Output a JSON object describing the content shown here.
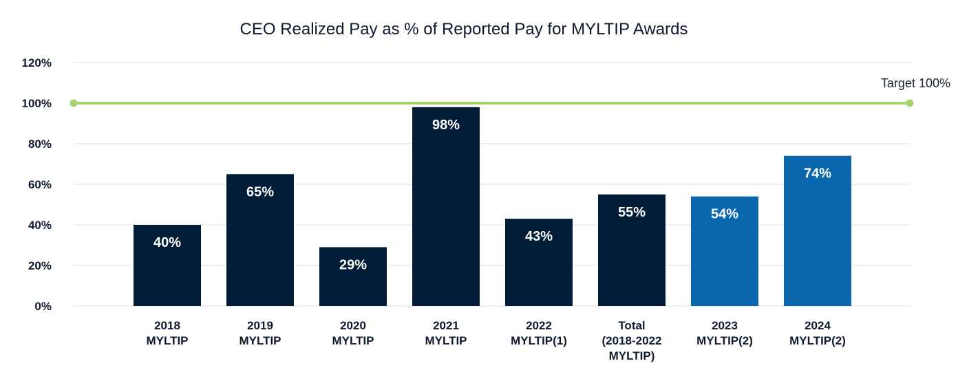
{
  "chart_data": {
    "type": "bar",
    "title": "CEO Realized Pay as % of Reported Pay for MYLTIP Awards",
    "xlabel": "",
    "ylabel": "",
    "ylim": [
      0,
      120
    ],
    "yticks": [
      0,
      20,
      40,
      60,
      80,
      100,
      120
    ],
    "ytick_labels": [
      "0%",
      "20%",
      "40%",
      "60%",
      "80%",
      "100%",
      "120%"
    ],
    "grid": true,
    "categories": [
      [
        "2018",
        "MYLTIP"
      ],
      [
        "2019",
        "MYLTIP"
      ],
      [
        "2020",
        "MYLTIP"
      ],
      [
        "2021",
        "MYLTIP"
      ],
      [
        "2022",
        "MYLTIP(1)"
      ],
      [
        "Total",
        "(2018-2022",
        "MYLTIP)"
      ],
      [
        "2023",
        "MYLTIP(2)"
      ],
      [
        "2024",
        "MYLTIP(2)"
      ]
    ],
    "values": [
      40,
      65,
      29,
      98,
      43,
      55,
      54,
      74
    ],
    "value_labels": [
      "40%",
      "65%",
      "29%",
      "98%",
      "43%",
      "55%",
      "54%",
      "74%"
    ],
    "bar_colors": [
      "#001c36",
      "#001c36",
      "#001c36",
      "#001c36",
      "#001c36",
      "#001c36",
      "#0b67ab",
      "#0b67ab"
    ],
    "target": {
      "value": 100,
      "label": "Target 100%",
      "color": "#a6d36f"
    },
    "colors": {
      "grid": "#e3e3e3",
      "text": "#0f1a2e",
      "bar_label": "#ffffff"
    }
  }
}
